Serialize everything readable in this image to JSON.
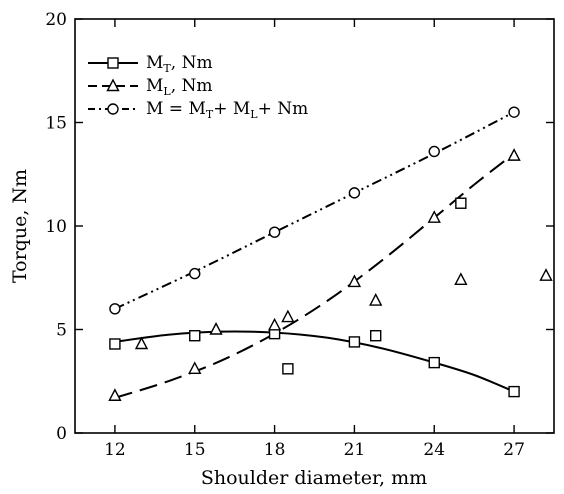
{
  "chart_data": {
    "type": "line",
    "xlabel": "Shoulder diameter, mm",
    "ylabel": "Torque, Nm",
    "xlim": [
      10.5,
      28.5
    ],
    "ylim": [
      0,
      20
    ],
    "xticks": [
      12,
      15,
      18,
      21,
      24,
      27
    ],
    "yticks": [
      0,
      5,
      10,
      15,
      20
    ],
    "grid": false,
    "legend_position": "top-left",
    "series": [
      {
        "name": "M_T, Nm",
        "legend": {
          "main": "M",
          "sub": "T",
          "rest": ", Nm"
        },
        "marker": "square",
        "line_style": "solid",
        "points": [
          [
            12,
            4.3
          ],
          [
            15,
            4.7
          ],
          [
            18,
            4.8
          ],
          [
            18.5,
            3.1
          ],
          [
            21,
            4.4
          ],
          [
            21.8,
            4.7
          ],
          [
            24,
            3.4
          ],
          [
            25,
            11.1
          ],
          [
            27,
            2.0
          ]
        ],
        "fit": [
          [
            12,
            4.4
          ],
          [
            14,
            4.75
          ],
          [
            16,
            4.9
          ],
          [
            18,
            4.85
          ],
          [
            20,
            4.6
          ],
          [
            22,
            4.1
          ],
          [
            24,
            3.4
          ],
          [
            25.5,
            2.8
          ],
          [
            27,
            2.0
          ]
        ]
      },
      {
        "name": "M_L, Nm",
        "legend": {
          "main": "M",
          "sub": "L",
          "rest": ", Nm"
        },
        "marker": "triangle",
        "line_style": "dashed",
        "points": [
          [
            12,
            1.8
          ],
          [
            13,
            4.3
          ],
          [
            15,
            3.1
          ],
          [
            15.8,
            5.0
          ],
          [
            18,
            5.2
          ],
          [
            18.5,
            5.6
          ],
          [
            21,
            7.3
          ],
          [
            21.8,
            6.4
          ],
          [
            24,
            10.4
          ],
          [
            25,
            7.4
          ],
          [
            27,
            13.4
          ],
          [
            28.2,
            7.6
          ]
        ],
        "fit": [
          [
            12,
            1.7
          ],
          [
            14,
            2.5
          ],
          [
            16,
            3.5
          ],
          [
            18,
            4.8
          ],
          [
            20,
            6.4
          ],
          [
            22,
            8.3
          ],
          [
            24,
            10.4
          ],
          [
            25.5,
            12.0
          ],
          [
            27,
            13.5
          ]
        ]
      },
      {
        "name": "M = MT+ ML+ Nm",
        "legend": {
          "main": "M",
          "eq": " = M",
          "sub1": "T",
          "mid": "+ M",
          "sub2": "L",
          "rest": "+ Nm"
        },
        "marker": "circle",
        "line_style": "dash-dot-dot",
        "points": [
          [
            12,
            6.0
          ],
          [
            15,
            7.7
          ],
          [
            18,
            9.7
          ],
          [
            21,
            11.6
          ],
          [
            24,
            13.6
          ],
          [
            27,
            15.5
          ]
        ],
        "fit": [
          [
            12,
            6.0
          ],
          [
            15,
            7.8
          ],
          [
            18,
            9.7
          ],
          [
            21,
            11.6
          ],
          [
            24,
            13.5
          ],
          [
            27,
            15.5
          ]
        ]
      }
    ]
  }
}
